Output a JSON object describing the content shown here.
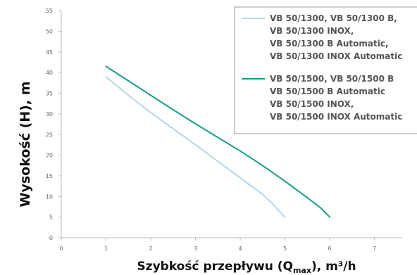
{
  "chart_data": {
    "type": "line",
    "ylabel": "Wysokość (H), m",
    "xlabel_parts": {
      "main": "Szybkość przepływu  (Q",
      "sub": "max",
      "tail": "), m³/h"
    },
    "xlim": [
      0,
      7
    ],
    "ylim": [
      0,
      55
    ],
    "x_ticks": [
      "0",
      "1",
      "2",
      "3",
      "4",
      "5",
      "6",
      "7"
    ],
    "y_ticks": [
      "0",
      "5",
      "10",
      "15",
      "20",
      "25",
      "30",
      "35",
      "40",
      "45",
      "50",
      "55"
    ],
    "grid": false,
    "legend_position": "top-right",
    "series": [
      {
        "name_lines": [
          "VB 50/1300, VB 50/1300 B,",
          "VB 50/1300 INOX,",
          "VB 50/1300 B Automatic,",
          "VB 50/1300 INOX Automatic"
        ],
        "color": "#a8cde3",
        "x": [
          1,
          1.5,
          2,
          2.5,
          3,
          3.5,
          4,
          4.5,
          4.7,
          4.85,
          5
        ],
        "y": [
          39,
          34.5,
          30.3,
          26.4,
          22.5,
          18.5,
          14.5,
          10.5,
          8.5,
          6.7,
          5
        ]
      },
      {
        "name_lines": [
          "VB 50/1500, VB 50/1500 B",
          "VB 50/1500 B Automatic",
          "VB 50/1500 INOX,",
          "VB 50/1500 INOX Automatic"
        ],
        "color": "#1a9e84",
        "x": [
          1,
          1.5,
          2,
          2.5,
          3,
          3.5,
          4,
          4.5,
          5,
          5.5,
          5.8,
          6
        ],
        "y": [
          41.5,
          38,
          34.5,
          31,
          27.6,
          24.3,
          21,
          17.5,
          13.7,
          9.7,
          7.2,
          5
        ]
      }
    ]
  }
}
